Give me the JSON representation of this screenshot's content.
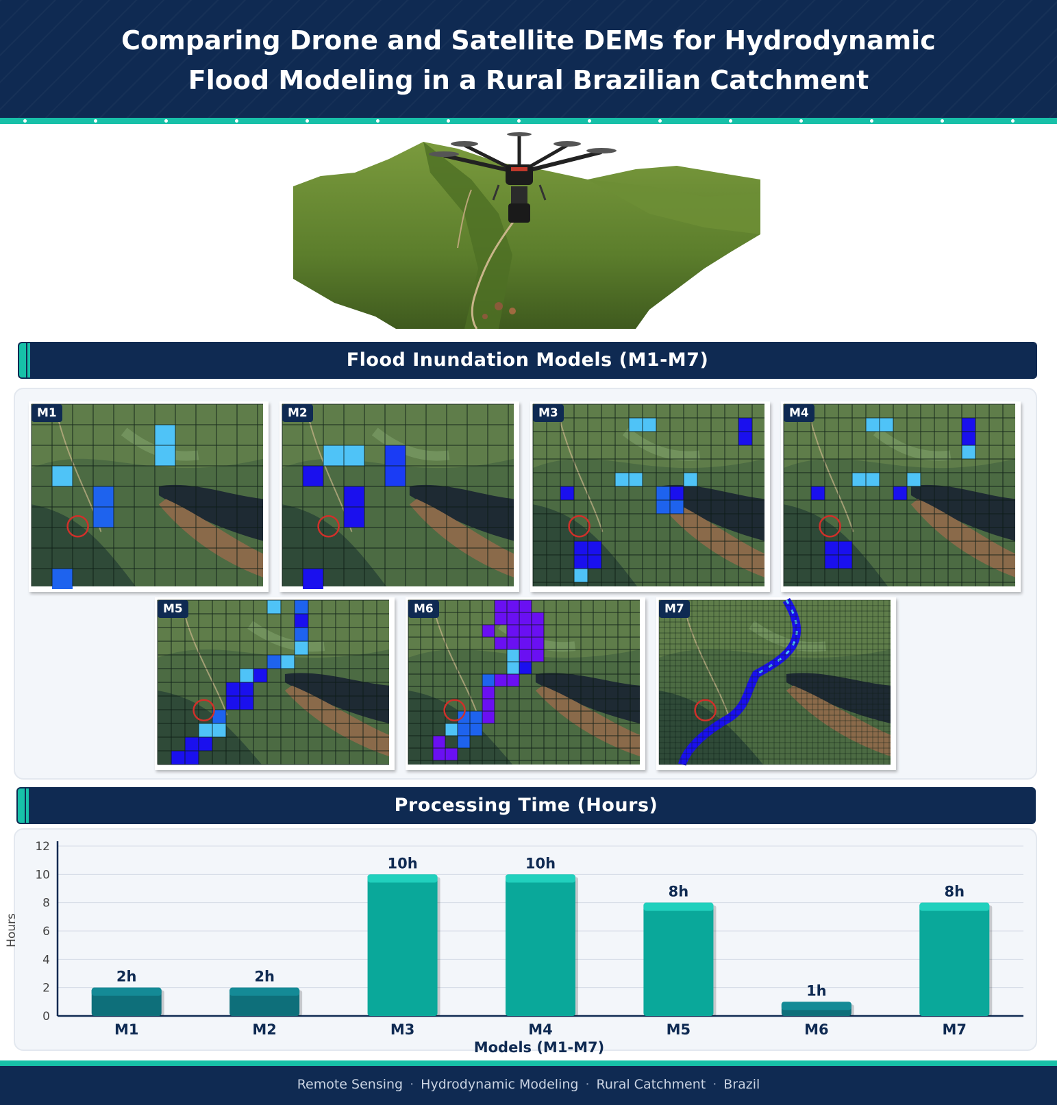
{
  "title": "Comparing Drone and Satellite DEMs for Hydrodynamic Flood Modeling in a Rural Brazilian Catchment",
  "colors": {
    "navy": "#0f2a52",
    "teal": "#17c0a8",
    "bar": "#0aa89a",
    "bar_dark": "#0e6f7a"
  },
  "sections": {
    "models_title": "Flood Inundation Models (M1-M7)",
    "chart_title": "Processing Time (Hours)"
  },
  "maps": [
    {
      "label": "M1",
      "cell": 30,
      "fills": [
        [
          6,
          1,
          "#4fc3f7"
        ],
        [
          6,
          2,
          "#4fc3f7"
        ],
        [
          1,
          3,
          "#4fc3f7"
        ],
        [
          3,
          4,
          "#1e63ee"
        ],
        [
          3,
          5,
          "#1e63ee"
        ],
        [
          1,
          8,
          "#1e63ee"
        ]
      ]
    },
    {
      "label": "M2",
      "cell": 30,
      "fills": [
        [
          5,
          2,
          "#1a3cf5"
        ],
        [
          5,
          3,
          "#1a3cf5"
        ],
        [
          2,
          2,
          "#4fc3f7"
        ],
        [
          3,
          2,
          "#4fc3f7"
        ],
        [
          1,
          3,
          "#1a10ee"
        ],
        [
          3,
          4,
          "#1a10ee"
        ],
        [
          3,
          5,
          "#1a10ee"
        ],
        [
          1,
          8,
          "#1a10ee"
        ]
      ]
    },
    {
      "label": "M3",
      "cell": 20,
      "fills": [
        [
          7,
          1,
          "#4fc3f7"
        ],
        [
          8,
          1,
          "#4fc3f7"
        ],
        [
          15,
          1,
          "#1a10ee"
        ],
        [
          15,
          2,
          "#1a10ee"
        ],
        [
          6,
          5,
          "#4fc3f7"
        ],
        [
          7,
          5,
          "#4fc3f7"
        ],
        [
          11,
          5,
          "#4fc3f7"
        ],
        [
          2,
          6,
          "#1a10ee"
        ],
        [
          9,
          6,
          "#1e63ee"
        ],
        [
          10,
          6,
          "#1a10ee"
        ],
        [
          9,
          7,
          "#1e63ee"
        ],
        [
          10,
          7,
          "#1e63ee"
        ],
        [
          3,
          10,
          "#1a10ee"
        ],
        [
          4,
          10,
          "#1a10ee"
        ],
        [
          3,
          11,
          "#1a10ee"
        ],
        [
          4,
          11,
          "#1a10ee"
        ],
        [
          3,
          12,
          "#4fc3f7"
        ]
      ]
    },
    {
      "label": "M4",
      "cell": 20,
      "fills": [
        [
          6,
          1,
          "#4fc3f7"
        ],
        [
          7,
          1,
          "#4fc3f7"
        ],
        [
          13,
          1,
          "#1a10ee"
        ],
        [
          13,
          2,
          "#1a10ee"
        ],
        [
          13,
          3,
          "#4fc3f7"
        ],
        [
          5,
          5,
          "#4fc3f7"
        ],
        [
          6,
          5,
          "#4fc3f7"
        ],
        [
          9,
          5,
          "#4fc3f7"
        ],
        [
          2,
          6,
          "#1a10ee"
        ],
        [
          8,
          6,
          "#1a10ee"
        ],
        [
          3,
          10,
          "#1a10ee"
        ],
        [
          4,
          10,
          "#1a10ee"
        ],
        [
          3,
          11,
          "#1a10ee"
        ],
        [
          4,
          11,
          "#1a10ee"
        ]
      ]
    },
    {
      "label": "M5",
      "cell": 20,
      "fills": [
        [
          8,
          0,
          "#4fc3f7"
        ],
        [
          10,
          0,
          "#1e63ee"
        ],
        [
          10,
          1,
          "#1a10ee"
        ],
        [
          10,
          2,
          "#1e63ee"
        ],
        [
          10,
          3,
          "#4fc3f7"
        ],
        [
          9,
          4,
          "#4fc3f7"
        ],
        [
          8,
          4,
          "#1e63ee"
        ],
        [
          7,
          5,
          "#1a10ee"
        ],
        [
          6,
          5,
          "#4fc3f7"
        ],
        [
          5,
          6,
          "#1a10ee"
        ],
        [
          6,
          6,
          "#1a10ee"
        ],
        [
          5,
          7,
          "#1a10ee"
        ],
        [
          6,
          7,
          "#1a10ee"
        ],
        [
          4,
          8,
          "#1e63ee"
        ],
        [
          3,
          9,
          "#4fc3f7"
        ],
        [
          4,
          9,
          "#4fc3f7"
        ],
        [
          2,
          10,
          "#1a10ee"
        ],
        [
          3,
          10,
          "#1a10ee"
        ],
        [
          1,
          11,
          "#1a10ee"
        ],
        [
          2,
          11,
          "#1a10ee"
        ]
      ]
    },
    {
      "label": "M6",
      "cell": 18,
      "fills": [
        [
          7,
          0,
          "#6a10f2"
        ],
        [
          8,
          0,
          "#6a10f2"
        ],
        [
          9,
          0,
          "#6a10f2"
        ],
        [
          7,
          1,
          "#6a10f2"
        ],
        [
          8,
          1,
          "#6a10f2"
        ],
        [
          9,
          1,
          "#6a10f2"
        ],
        [
          10,
          1,
          "#6a10f2"
        ],
        [
          6,
          2,
          "#6a10f2"
        ],
        [
          8,
          2,
          "#6a10f2"
        ],
        [
          9,
          2,
          "#6a10f2"
        ],
        [
          10,
          2,
          "#6a10f2"
        ],
        [
          7,
          3,
          "#6a10f2"
        ],
        [
          8,
          3,
          "#6a10f2"
        ],
        [
          9,
          3,
          "#6a10f2"
        ],
        [
          10,
          3,
          "#6a10f2"
        ],
        [
          8,
          4,
          "#4fc3f7"
        ],
        [
          9,
          4,
          "#6a10f2"
        ],
        [
          10,
          4,
          "#6a10f2"
        ],
        [
          8,
          5,
          "#4fc3f7"
        ],
        [
          9,
          5,
          "#1a10ee"
        ],
        [
          6,
          6,
          "#1e63ee"
        ],
        [
          7,
          6,
          "#6a10f2"
        ],
        [
          8,
          6,
          "#6a10f2"
        ],
        [
          6,
          7,
          "#6a10f2"
        ],
        [
          6,
          8,
          "#6a10f2"
        ],
        [
          4,
          9,
          "#1e63ee"
        ],
        [
          5,
          9,
          "#1e63ee"
        ],
        [
          6,
          9,
          "#6a10f2"
        ],
        [
          3,
          10,
          "#4fc3f7"
        ],
        [
          4,
          10,
          "#1e63ee"
        ],
        [
          5,
          10,
          "#1e63ee"
        ],
        [
          2,
          11,
          "#6a10f2"
        ],
        [
          4,
          11,
          "#1e63ee"
        ],
        [
          2,
          12,
          "#6a10f2"
        ],
        [
          3,
          12,
          "#6a10f2"
        ]
      ]
    },
    {
      "label": "M7",
      "cell": 8,
      "fills": []
    }
  ],
  "chart_data": {
    "type": "bar",
    "title": "Processing Time (Hours)",
    "categories": [
      "M1",
      "M2",
      "M3",
      "M4",
      "M5",
      "M6",
      "M7"
    ],
    "values": [
      2,
      2,
      10,
      10,
      8,
      1,
      8
    ],
    "value_labels": [
      "2h",
      "2h",
      "10h",
      "10h",
      "8h",
      "1h",
      "8h"
    ],
    "xlabel": "Models (M1-M7)",
    "ylabel": "Hours",
    "ylim": [
      0,
      12
    ],
    "yticks": [
      0,
      2,
      4,
      6,
      8,
      10,
      12
    ],
    "grid": true
  },
  "footer": {
    "items": [
      "Remote Sensing",
      "Hydrodynamic Modeling",
      "Rural Catchment",
      "Brazil"
    ],
    "separator": "·"
  }
}
